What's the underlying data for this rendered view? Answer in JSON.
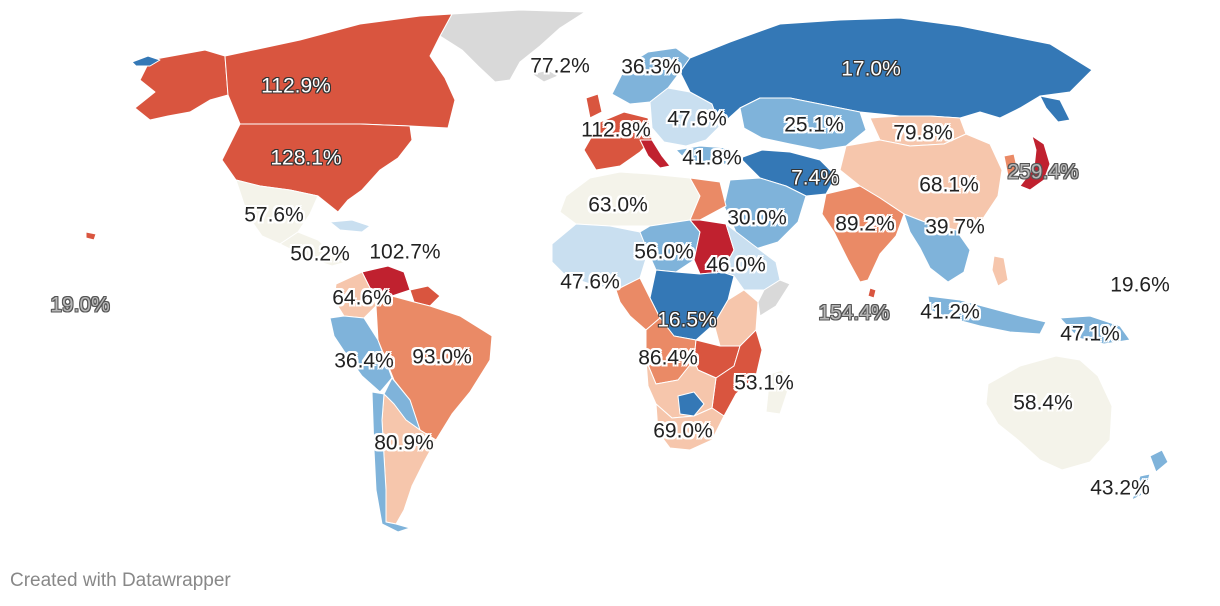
{
  "credit": "Created with Datawrapper",
  "colors": {
    "deep_red": "#c0212f",
    "red": "#d9553f",
    "orange": "#ea8a66",
    "peach": "#f6c6ac",
    "cream": "#f4f3ea",
    "light_blue": "#c9dff0",
    "blue": "#7fb3da",
    "deep_blue": "#3478b6",
    "no_data": "#d9d9d9",
    "label_text": "#222222"
  },
  "labels": [
    {
      "id": "canada",
      "text": "112.9%",
      "style": "inverse"
    },
    {
      "id": "united-states",
      "text": "128.1%",
      "style": "inverse"
    },
    {
      "id": "greenland",
      "text": "77.2%",
      "style": "normal"
    },
    {
      "id": "scandinavia",
      "text": "36.3%",
      "style": "normal"
    },
    {
      "id": "russia",
      "text": "17.0%",
      "style": "inverse"
    },
    {
      "id": "western-europe",
      "text": "112.8%",
      "style": "normal"
    },
    {
      "id": "eastern-europe",
      "text": "47.6%",
      "style": "normal"
    },
    {
      "id": "central-asia",
      "text": "25.1%",
      "style": "normal"
    },
    {
      "id": "mongolia",
      "text": "79.8%",
      "style": "normal"
    },
    {
      "id": "turkey",
      "text": "41.8%",
      "style": "normal"
    },
    {
      "id": "middle-east",
      "text": "7.4%",
      "style": "inverse"
    },
    {
      "id": "japan",
      "text": "259.4%",
      "style": "grey"
    },
    {
      "id": "china",
      "text": "68.1%",
      "style": "normal"
    },
    {
      "id": "mexico",
      "text": "57.6%",
      "style": "normal"
    },
    {
      "id": "north-africa",
      "text": "63.0%",
      "style": "normal"
    },
    {
      "id": "arabia",
      "text": "30.0%",
      "style": "normal"
    },
    {
      "id": "india",
      "text": "89.2%",
      "style": "normal"
    },
    {
      "id": "southeast-asia",
      "text": "39.7%",
      "style": "normal"
    },
    {
      "id": "central-america",
      "text": "50.2%",
      "style": "normal"
    },
    {
      "id": "caribbean",
      "text": "102.7%",
      "style": "normal"
    },
    {
      "id": "sahel",
      "text": "56.0%",
      "style": "normal"
    },
    {
      "id": "east-africa",
      "text": "46.0%",
      "style": "normal"
    },
    {
      "id": "west-africa",
      "text": "47.6%",
      "style": "normal"
    },
    {
      "id": "hawaii",
      "text": "19.0%",
      "style": "grey"
    },
    {
      "id": "colombia",
      "text": "64.6%",
      "style": "normal"
    },
    {
      "id": "pacific-islands",
      "text": "19.6%",
      "style": "normal"
    },
    {
      "id": "central-africa",
      "text": "16.5%",
      "style": "inverse"
    },
    {
      "id": "indian-ocean",
      "text": "154.4%",
      "style": "grey"
    },
    {
      "id": "indonesia",
      "text": "41.2%",
      "style": "normal"
    },
    {
      "id": "peru",
      "text": "36.4%",
      "style": "normal"
    },
    {
      "id": "brazil",
      "text": "93.0%",
      "style": "normal"
    },
    {
      "id": "angola",
      "text": "86.4%",
      "style": "normal"
    },
    {
      "id": "papua",
      "text": "47.1%",
      "style": "normal"
    },
    {
      "id": "mozambique",
      "text": "53.1%",
      "style": "normal"
    },
    {
      "id": "australia",
      "text": "58.4%",
      "style": "normal"
    },
    {
      "id": "argentina",
      "text": "80.9%",
      "style": "normal"
    },
    {
      "id": "south-africa",
      "text": "69.0%",
      "style": "normal"
    },
    {
      "id": "new-zealand",
      "text": "43.2%",
      "style": "normal"
    }
  ]
}
